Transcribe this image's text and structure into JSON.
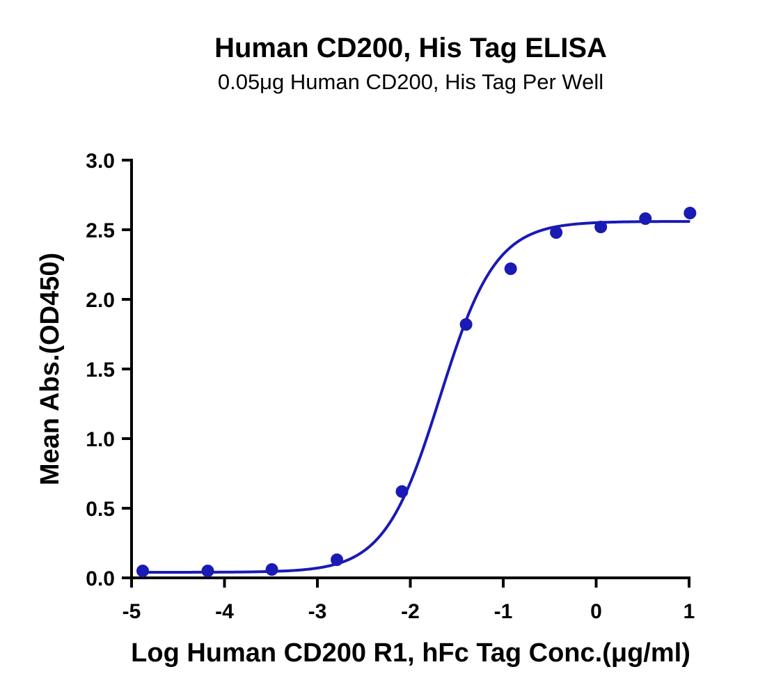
{
  "chart_data": {
    "type": "scatter",
    "title": "Human CD200, His Tag ELISA",
    "subtitle": "0.05μg Human CD200, His Tag Per Well",
    "xlabel": "Log Human CD200 R1, hFc Tag Conc.(μg/ml)",
    "ylabel": "Mean Abs.(OD450)",
    "xlim": [
      -5,
      1
    ],
    "ylim": [
      0,
      3.0
    ],
    "x_ticks": [
      "-5",
      "-4",
      "-3",
      "-2",
      "-1",
      "0",
      "1"
    ],
    "y_ticks": [
      "0.0",
      "0.5",
      "1.0",
      "1.5",
      "2.0",
      "2.5",
      "3.0"
    ],
    "grid": false,
    "color": "#1a1ab4",
    "series": [
      {
        "x": [
          -4.88,
          -4.18,
          -3.49,
          -2.79,
          -2.09,
          -1.4,
          -0.92,
          -0.43,
          0.05,
          0.53,
          1.01
        ],
        "y": [
          0.05,
          0.05,
          0.06,
          0.13,
          0.62,
          1.82,
          2.22,
          2.48,
          2.52,
          2.58,
          2.62
        ]
      }
    ],
    "fit": {
      "model": "4PL",
      "bottom": 0.04,
      "top": 2.56,
      "log_ec50": -1.68,
      "hill_slope": 1.45,
      "x_range": [
        -4.88,
        1.01
      ]
    }
  }
}
